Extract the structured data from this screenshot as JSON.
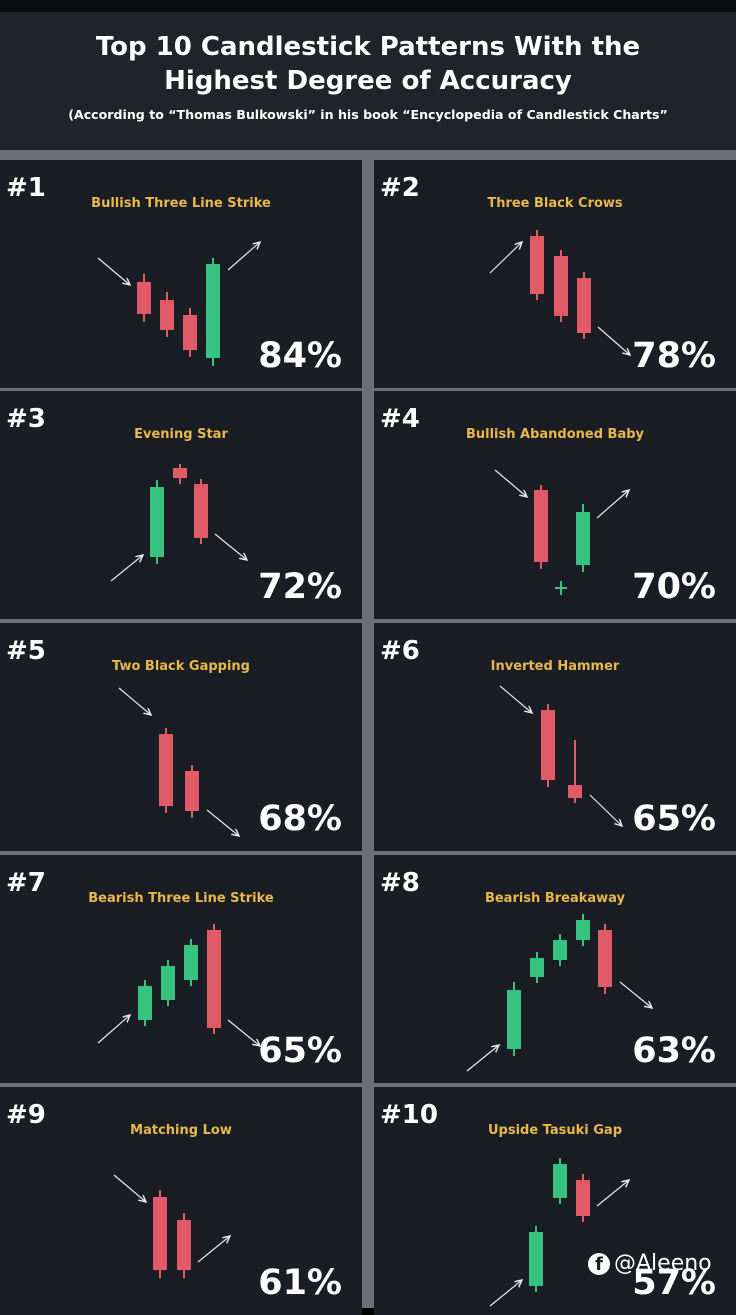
{
  "header": {
    "title_line1": "Top 10 Candlestick Patterns With the",
    "title_line2": "Highest Degree of Accuracy",
    "subtitle": "(According to “Thomas Bulkowski” in his book “Encyclopedia of Candlestick Charts”"
  },
  "colors": {
    "bull": "#37c280",
    "bear": "#e05a68",
    "label": "#e8b84a",
    "arrow": "#e9e9e9"
  },
  "patterns": [
    {
      "rank": "#1",
      "name": "Bullish Three Line Strike",
      "accuracy": "84%"
    },
    {
      "rank": "#2",
      "name": "Three Black Crows",
      "accuracy": "78%"
    },
    {
      "rank": "#3",
      "name": "Evening Star",
      "accuracy": "72%"
    },
    {
      "rank": "#4",
      "name": "Bullish Abandoned Baby",
      "accuracy": "70%"
    },
    {
      "rank": "#5",
      "name": "Two Black Gapping",
      "accuracy": "68%"
    },
    {
      "rank": "#6",
      "name": "Inverted Hammer",
      "accuracy": "65%"
    },
    {
      "rank": "#7",
      "name": "Bearish Three Line Strike",
      "accuracy": "65%"
    },
    {
      "rank": "#8",
      "name": "Bearish Breakaway",
      "accuracy": "63%"
    },
    {
      "rank": "#9",
      "name": "Matching Low",
      "accuracy": "61%"
    },
    {
      "rank": "#10",
      "name": "Upside Tasuki Gap",
      "accuracy": "57%"
    }
  ],
  "watermark": {
    "icon": "facebook-icon",
    "handle": "@Aleeno"
  }
}
